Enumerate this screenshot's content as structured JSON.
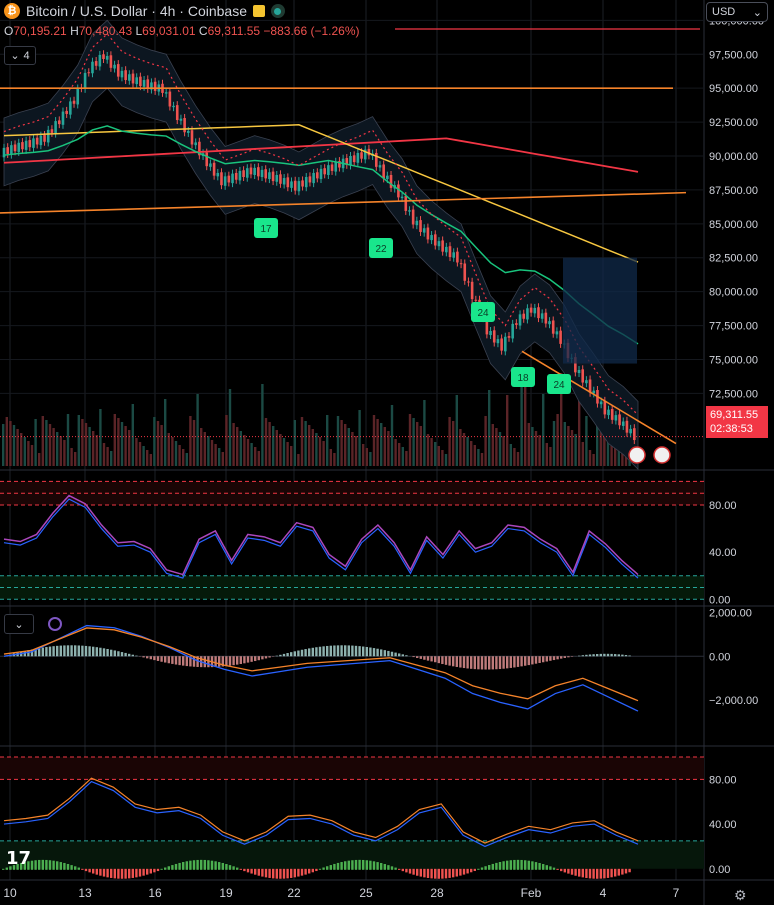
{
  "header": {
    "title": "Bitcoin / U.S. Dollar · 4h · Coinbase",
    "logo_letter": "₿"
  },
  "ohlc": {
    "open_label": "O",
    "open": "70,195.21",
    "high_label": "H",
    "high": "70,480.43",
    "low_label": "L",
    "low": "69,031.01",
    "close_label": "C",
    "close": "69,311.55",
    "change": "−883.66 (−1.26%)"
  },
  "indicator_toggle": {
    "count": "4",
    "chevron": "⌄"
  },
  "currency": {
    "label": "USD",
    "chevron": "⌄"
  },
  "price_tag": {
    "price": "69,311.55",
    "countdown": "02:38:53"
  },
  "colors": {
    "up": "#26a69a",
    "down": "#ef5350",
    "ma_red": "#f23645",
    "ma_yellow": "#f7c740",
    "ma_green": "#19c37d",
    "orange": "#f5832a",
    "rsi_line": "#7e57c2",
    "macd_blue": "#2962ff",
    "badge_green": "#19e68c"
  },
  "chart_data": [
    {
      "type": "line",
      "title": "Bitcoin / U.S. Dollar · 4h · Coinbase",
      "ylabel": "",
      "ylim": [
        67000,
        101500
      ],
      "yticks": [
        "100,000.00",
        "97,500.00",
        "95,000.00",
        "92,500.00",
        "90,000.00",
        "87,500.00",
        "85,000.00",
        "82,500.00",
        "80,000.00",
        "77,500.00",
        "75,000.00",
        "72,500.00"
      ],
      "ytick_values": [
        100000,
        97500,
        95000,
        92500,
        90000,
        87500,
        85000,
        82500,
        80000,
        77500,
        75000,
        72500
      ],
      "xticks": [
        "10",
        "13",
        "16",
        "19",
        "22",
        "25",
        "28",
        "Feb",
        "4",
        "7"
      ],
      "xtick_index": [
        0,
        3,
        6,
        9,
        12,
        15,
        18,
        21,
        24,
        27
      ],
      "series": [
        {
          "values": [
            90200,
            90600,
            90900,
            91300,
            92600,
            94100,
            96400,
            97400,
            96100,
            95600,
            95200,
            94900,
            92900,
            91100,
            89500,
            88100,
            88500,
            88900,
            88600,
            88200,
            87700,
            88300,
            88900,
            89400,
            89800,
            90300,
            88600,
            87200,
            85200,
            84100,
            83200,
            82400,
            79700,
            77100,
            75900,
            77800,
            78700,
            77900,
            76400,
            74300,
            72800,
            71200,
            70400,
            69311
          ]
        }
      ],
      "badges": [
        {
          "label": "17"
        },
        {
          "label": "22"
        },
        {
          "label": "24"
        },
        {
          "label": "18"
        },
        {
          "label": "24"
        }
      ]
    },
    {
      "type": "line",
      "ylim": [
        -4,
        108
      ],
      "yticks": [
        "80.00",
        "40.00",
        "0.00"
      ],
      "ytick_values": [
        80,
        40,
        0
      ]
    },
    {
      "type": "line",
      "ylim": [
        -4000,
        2200
      ],
      "yticks": [
        "2,000.00",
        "0.00",
        "−2,000.00"
      ],
      "ytick_values": [
        2000,
        0,
        -2000
      ]
    },
    {
      "type": "line",
      "ylim": [
        -10,
        108
      ],
      "yticks": [
        "80.00",
        "40.00",
        "0.00"
      ],
      "ytick_values": [
        80,
        40,
        0
      ]
    }
  ]
}
